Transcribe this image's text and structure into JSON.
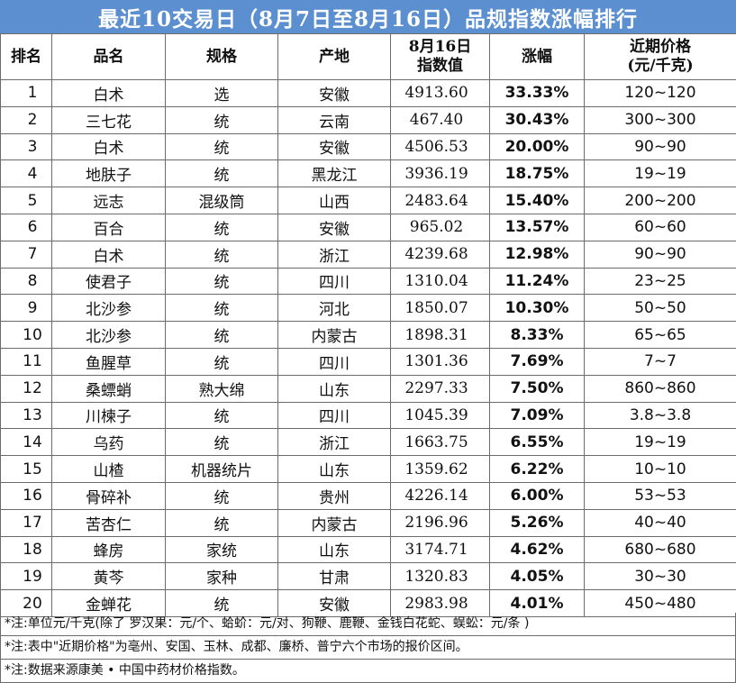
{
  "title": "最近10交易日（8月7日至8月16日）品规指数涨幅排行",
  "headers": {
    "rank": "排名",
    "name": "品名",
    "spec": "规格",
    "origin": "产地",
    "index_line1": "8月16日",
    "index_line2": "指数值",
    "change": "涨幅",
    "price_line1": "近期价格",
    "price_line2": "(元/千克)"
  },
  "rows": [
    {
      "rank": "1",
      "name": "白术",
      "spec": "选",
      "origin": "安徽",
      "index": "4913.60",
      "change": "33.33%",
      "price": "120~120"
    },
    {
      "rank": "2",
      "name": "三七花",
      "spec": "统",
      "origin": "云南",
      "index": "467.40",
      "change": "30.43%",
      "price": "300~300"
    },
    {
      "rank": "3",
      "name": "白术",
      "spec": "统",
      "origin": "安徽",
      "index": "4506.53",
      "change": "20.00%",
      "price": "90~90"
    },
    {
      "rank": "4",
      "name": "地肤子",
      "spec": "统",
      "origin": "黑龙江",
      "index": "3936.19",
      "change": "18.75%",
      "price": "19~19"
    },
    {
      "rank": "5",
      "name": "远志",
      "spec": "混级筒",
      "origin": "山西",
      "index": "2483.64",
      "change": "15.40%",
      "price": "200~200"
    },
    {
      "rank": "6",
      "name": "百合",
      "spec": "统",
      "origin": "安徽",
      "index": "965.02",
      "change": "13.57%",
      "price": "60~60"
    },
    {
      "rank": "7",
      "name": "白术",
      "spec": "统",
      "origin": "浙江",
      "index": "4239.68",
      "change": "12.98%",
      "price": "90~90"
    },
    {
      "rank": "8",
      "name": "使君子",
      "spec": "统",
      "origin": "四川",
      "index": "1310.04",
      "change": "11.24%",
      "price": "23~25"
    },
    {
      "rank": "9",
      "name": "北沙参",
      "spec": "统",
      "origin": "河北",
      "index": "1850.07",
      "change": "10.30%",
      "price": "50~50"
    },
    {
      "rank": "10",
      "name": "北沙参",
      "spec": "统",
      "origin": "内蒙古",
      "index": "1898.31",
      "change": "8.33%",
      "price": "65~65"
    },
    {
      "rank": "11",
      "name": "鱼腥草",
      "spec": "统",
      "origin": "四川",
      "index": "1301.36",
      "change": "7.69%",
      "price": "7~7"
    },
    {
      "rank": "12",
      "name": "桑螵蛸",
      "spec": "熟大绵",
      "origin": "山东",
      "index": "2297.33",
      "change": "7.50%",
      "price": "860~860"
    },
    {
      "rank": "13",
      "name": "川楝子",
      "spec": "统",
      "origin": "四川",
      "index": "1045.39",
      "change": "7.09%",
      "price": "3.8~3.8"
    },
    {
      "rank": "14",
      "name": "乌药",
      "spec": "统",
      "origin": "浙江",
      "index": "1663.75",
      "change": "6.55%",
      "price": "19~19"
    },
    {
      "rank": "15",
      "name": "山楂",
      "spec": "机器统片",
      "origin": "山东",
      "index": "1359.62",
      "change": "6.22%",
      "price": "10~10"
    },
    {
      "rank": "16",
      "name": "骨碎补",
      "spec": "统",
      "origin": "贵州",
      "index": "4226.14",
      "change": "6.00%",
      "price": "53~53"
    },
    {
      "rank": "17",
      "name": "苦杏仁",
      "spec": "统",
      "origin": "内蒙古",
      "index": "2196.96",
      "change": "5.26%",
      "price": "40~40"
    },
    {
      "rank": "18",
      "name": "蜂房",
      "spec": "家统",
      "origin": "山东",
      "index": "3174.71",
      "change": "4.62%",
      "price": "680~680"
    },
    {
      "rank": "19",
      "name": "黄芩",
      "spec": "家种",
      "origin": "甘肃",
      "index": "1320.83",
      "change": "4.05%",
      "price": "30~30"
    },
    {
      "rank": "20",
      "name": "金蝉花",
      "spec": "统",
      "origin": "安徽",
      "index": "2983.98",
      "change": "4.01%",
      "price": "450~480"
    }
  ],
  "notes": [
    "*注:单位元/千克(除了 罗汉果：元/个、蛤蚧：元/对、狗鞭、鹿鞭、金钱白花蛇、蜈蚣：元/条 )",
    "*注:表中\"近期价格\"为亳州、安国、玉林、成都、廉桥、普宁六个市场的报价区间。",
    "*注:数据来源康美 • 中国中药材价格指数。"
  ],
  "colors": {
    "title_bg": "#5b8fd0",
    "title_text": "#ffffff",
    "change_text": "#e2282c",
    "border": "#6b6b6b"
  }
}
